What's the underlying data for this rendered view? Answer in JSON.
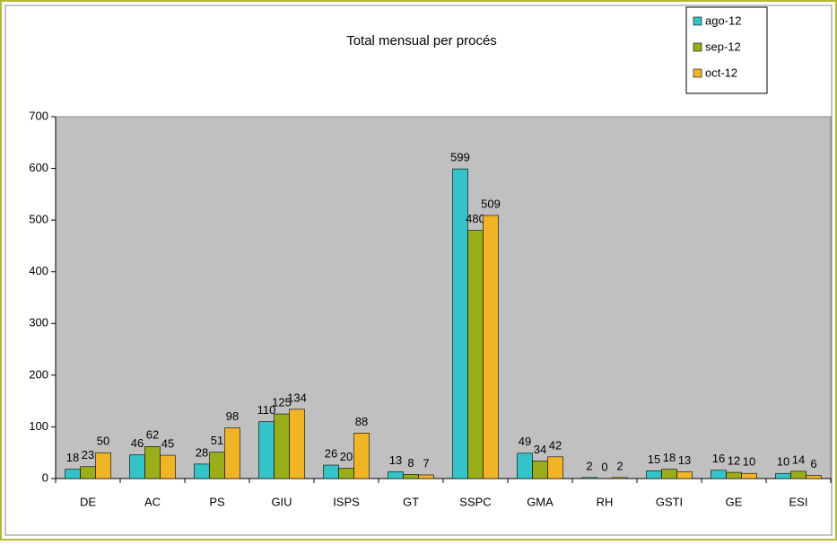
{
  "chart_data": {
    "type": "bar",
    "title": "Total mensual per procés",
    "categories": [
      "DE",
      "AC",
      "PS",
      "GIU",
      "ISPS",
      "GT",
      "SSPC",
      "GMA",
      "RH",
      "GSTI",
      "GE",
      "ESI"
    ],
    "series": [
      {
        "name": "ago-12",
        "color": "#33c3c8",
        "values": [
          18,
          46,
          28,
          110,
          26,
          13,
          599,
          49,
          2,
          15,
          16,
          10
        ]
      },
      {
        "name": "sep-12",
        "color": "#9aae1c",
        "values": [
          23,
          62,
          51,
          125,
          20,
          8,
          480,
          34,
          0,
          18,
          12,
          14
        ]
      },
      {
        "name": "oct-12",
        "color": "#f2b427",
        "values": [
          50,
          45,
          98,
          134,
          88,
          7,
          509,
          42,
          2,
          13,
          10,
          6
        ]
      }
    ],
    "ylim": [
      0,
      700
    ],
    "yticks": [
      0,
      100,
      200,
      300,
      400,
      500,
      600,
      700
    ],
    "grid": false,
    "legend": "top-right"
  }
}
